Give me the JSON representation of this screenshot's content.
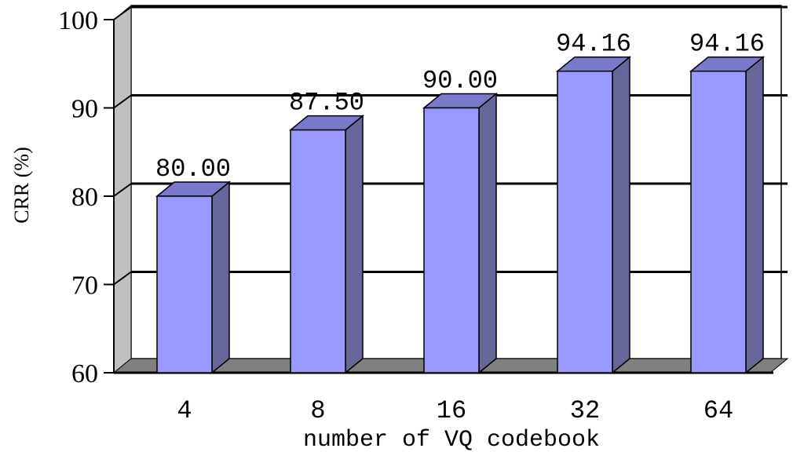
{
  "chart_data": {
    "type": "bar",
    "categories": [
      "4",
      "8",
      "16",
      "32",
      "64"
    ],
    "values": [
      80.0,
      87.5,
      90.0,
      94.16,
      94.16
    ],
    "data_labels": [
      "80.00",
      "87.50",
      "90.00",
      "94.16",
      "94.16"
    ],
    "title": "",
    "xlabel": "number of VQ codebook",
    "ylabel": "CRR (%)",
    "ylim": [
      60,
      100
    ],
    "yticks": [
      60,
      70,
      80,
      90,
      100
    ],
    "grid": true,
    "legend": "none",
    "colors": {
      "bar_front": "#9999FF",
      "bar_side": "#666699",
      "bar_top": "#7A7ACC",
      "wall": "#C0C0C0",
      "floor": "#808080",
      "gridline": "#000000"
    }
  }
}
